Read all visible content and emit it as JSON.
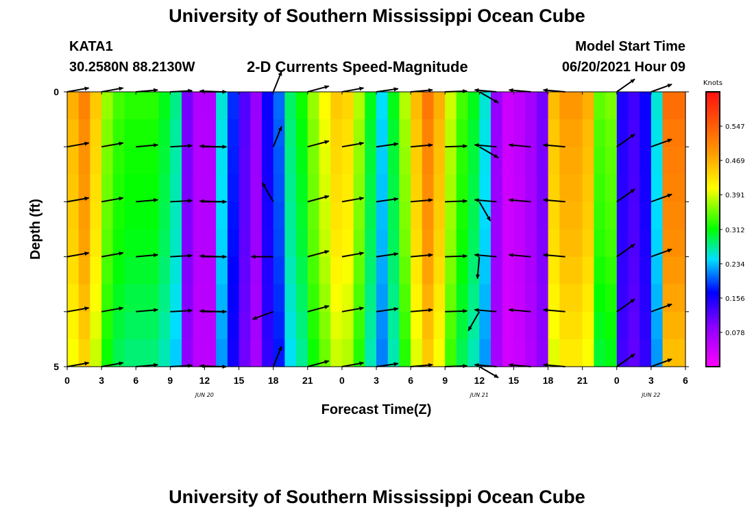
{
  "header": {
    "title_top": "University of Southern Mississippi Ocean Cube",
    "title_bottom": "University of Southern Mississippi Ocean Cube",
    "station": "KATA1",
    "coords": "30.2580N  88.2130W",
    "product": "2-D Currents Speed-Magnitude",
    "model_start_label": "Model Start Time",
    "model_start_value": "06/20/2021 Hour 09"
  },
  "chart_data": {
    "type": "heatmap",
    "xlabel": "Forecast Time(Z)",
    "ylabel": "Depth (ft)",
    "x_tick_labels": [
      "0",
      "3",
      "6",
      "9",
      "12",
      "15",
      "18",
      "21",
      "0",
      "3",
      "6",
      "9",
      "12",
      "15",
      "18",
      "21",
      "0",
      "3",
      "6"
    ],
    "date_labels": [
      {
        "text": "JUN 20",
        "at_hour": 12
      },
      {
        "text": "JUN 21",
        "at_hour": 36
      },
      {
        "text": "JUN 22",
        "at_hour": 51
      }
    ],
    "y_tick_labels": [
      "0",
      "5"
    ],
    "ylim": [
      0,
      5
    ],
    "xlim_hours": [
      0,
      54
    ],
    "colorbar": {
      "unit": "Knots",
      "min": 0.0,
      "max": 0.625,
      "tick_values": [
        0.547,
        0.469,
        0.391,
        0.312,
        0.234,
        0.156,
        0.078
      ],
      "tick_labels": [
        "0.547",
        "0.469",
        "0.391",
        "0.312",
        "0.234",
        "0.156",
        "0.078"
      ]
    },
    "speed_profile_knots": [
      0.46,
      0.5,
      0.44,
      0.36,
      0.33,
      0.32,
      0.32,
      0.32,
      0.3,
      0.27,
      0.1,
      0.06,
      0.06,
      0.25,
      0.18,
      0.12,
      0.08,
      0.16,
      0.2,
      0.28,
      0.31,
      0.36,
      0.4,
      0.44,
      0.43,
      0.37,
      0.3,
      0.24,
      0.3,
      0.37,
      0.45,
      0.51,
      0.46,
      0.38,
      0.33,
      0.3,
      0.25,
      0.08,
      0.04,
      0.05,
      0.07,
      0.1,
      0.45,
      0.48,
      0.48,
      0.46,
      0.34,
      0.35,
      0.15,
      0.13,
      0.16,
      0.25,
      0.52,
      0.52,
      0.49
    ],
    "depth_rows_ft": [
      0,
      1,
      2,
      3,
      4,
      5
    ],
    "vector_times_hours": [
      0,
      3,
      6,
      9,
      12,
      13.5,
      18,
      21,
      24,
      27,
      30,
      33,
      36,
      37.5,
      40.5,
      43.5,
      48,
      51
    ],
    "vector_directions_deg": [
      10,
      10,
      5,
      3,
      0,
      178,
      68,
      15,
      10,
      8,
      5,
      2,
      330,
      175,
      175,
      175,
      35,
      20
    ],
    "vector_directions_by_depth_deg": {
      "row2_hour18": 120,
      "row3_hour18": 180,
      "row4_hour18": 200,
      "row2_hour36": 300,
      "row3_hour36": 265,
      "row4_hour36": 240,
      "row0_hour37": 340,
      "row0_hour13": 180
    }
  }
}
